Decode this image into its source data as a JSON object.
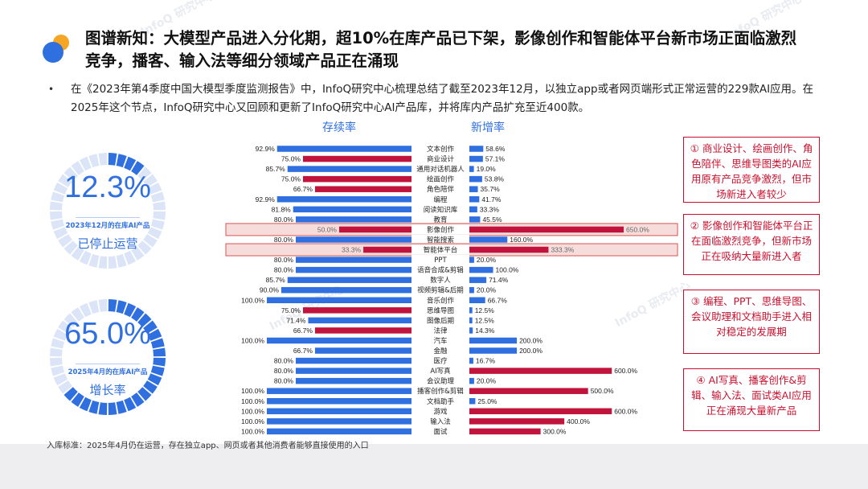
{
  "title": "图谱新知：大模型产品进入分化期，超10%在库产品已下架，影像创作和智能体平台新市场正面临激烈竞争，播客、输入法等细分领域产品正在涌现",
  "bullet": "•",
  "intro": "在《2023年第4季度中国大模型季度监测报告》中，InfoQ研究中心梳理总结了截至2023年12月，以独立app或者网页端形式正常运营的229款AI应用。在2025年这个节点，InfoQ研究中心又回顾和更新了InfoQ研究中心AI产品库，并将库内产品扩充至近400款。",
  "stat1": {
    "value": "12.3%",
    "sub": "2023年12月的在库AI产品",
    "label": "已停止运营",
    "fraction": 0.123
  },
  "stat2": {
    "value": "65.0%",
    "sub": "2025年4月的在库AI产品",
    "label": "增长率",
    "fraction": 0.65
  },
  "notes": [
    "① 商业设计、绘画创作、角色陪伴、思维导图类的AI应用原有产品竞争激烈，但市场新进入者较少",
    "② 影像创作和智能体平台正在面临激烈竞争，但新市场正在吸纳大量新进入者",
    "③ 编程、PPT、思维导图、会议助理和文档助手进入相对稳定的发展期",
    "④ AI写真、播客创作&剪辑、输入法、面试类AI应用正在涌现大量新产品"
  ],
  "footnote": "入库标准：2025年4月仍在运营，存在独立app、网页或者其他消费者能够直接使用的入口",
  "watermark": "InfoQ 研究中心",
  "colors": {
    "blue": "#2f6fe0",
    "red": "#c0143c",
    "highlight_fill": "#f7dcdc",
    "highlight_border": "#d9534f"
  },
  "chart_data": {
    "type": "bar",
    "layout": "diverging",
    "series": [
      {
        "name": "存续率",
        "side": "left",
        "values": [
          92.9,
          75.0,
          85.7,
          75.0,
          66.7,
          92.9,
          81.8,
          80.0,
          50.0,
          80.0,
          33.3,
          80.0,
          80.0,
          85.7,
          90.0,
          100.0,
          75.0,
          71.4,
          66.7,
          100.0,
          66.7,
          80.0,
          80.0,
          80.0,
          100.0,
          100.0,
          100.0,
          100.0,
          100.0
        ],
        "labels": [
          "92.9%",
          "75.0%",
          "85.7%",
          "75.0%",
          "66.7%",
          "92.9%",
          "81.8%",
          "80.0%",
          "50.0%",
          "80.0%",
          "33.3%",
          "80.0%",
          "80.0%",
          "85.7%",
          "90.0%",
          "100.0%",
          "75.0%",
          "71.4%",
          "66.7%",
          "100.0%",
          "66.7%",
          "80.0%",
          "80.0%",
          "80.0%",
          "100.0%",
          "100.0%",
          "100.0%",
          "100.0%",
          "100.0%"
        ]
      },
      {
        "name": "新增率",
        "side": "right",
        "values": [
          58.6,
          57.1,
          19.0,
          53.8,
          35.7,
          41.7,
          33.3,
          45.5,
          650.0,
          160.0,
          333.3,
          20.0,
          100.0,
          71.4,
          20.0,
          66.7,
          12.5,
          12.5,
          14.3,
          200.0,
          200.0,
          16.7,
          600.0,
          20.0,
          500.0,
          25.0,
          600.0,
          400.0,
          300.0
        ],
        "labels": [
          "58.6%",
          "57.1%",
          "19.0%",
          "53.8%",
          "35.7%",
          "41.7%",
          "33.3%",
          "45.5%",
          "650.0%",
          "160.0%",
          "333.3%",
          "20.0%",
          "100.0%",
          "71.4%",
          "20.0%",
          "66.7%",
          "12.5%",
          "12.5%",
          "14.3%",
          "200.0%",
          "200.0%",
          "16.7%",
          "600.0%",
          "20.0%",
          "500.0%",
          "25.0%",
          "600.0%",
          "400.0%",
          "300.0%"
        ]
      }
    ],
    "categories": [
      "文本创作",
      "商业设计",
      "通用对话机器人",
      "绘画创作",
      "角色陪伴",
      "编程",
      "阅读知识库",
      "教育",
      "影像创作",
      "智能搜索",
      "智能体平台",
      "PPT",
      "语音合成&剪辑",
      "数字人",
      "视频剪辑&后期",
      "音乐创作",
      "思维导图",
      "图像后期",
      "法律",
      "汽车",
      "金融",
      "医疗",
      "AI写真",
      "会议助理",
      "播客创作&剪辑",
      "文档助手",
      "游戏",
      "输入法",
      "面试"
    ],
    "left_color": [
      "blue",
      "red",
      "blue",
      "red",
      "red",
      "blue",
      "blue",
      "blue",
      "red",
      "blue",
      "red",
      "blue",
      "blue",
      "blue",
      "blue",
      "blue",
      "red",
      "blue",
      "red",
      "blue",
      "blue",
      "blue",
      "blue",
      "blue",
      "blue",
      "blue",
      "blue",
      "blue",
      "blue"
    ],
    "right_color": [
      "blue",
      "blue",
      "blue",
      "blue",
      "blue",
      "blue",
      "blue",
      "blue",
      "red",
      "blue",
      "red",
      "blue",
      "blue",
      "blue",
      "blue",
      "blue",
      "blue",
      "blue",
      "blue",
      "blue",
      "blue",
      "blue",
      "red",
      "blue",
      "red",
      "blue",
      "red",
      "red",
      "red"
    ],
    "highlighted": [
      "影像创作",
      "智能体平台"
    ],
    "left_range": [
      0,
      100
    ],
    "right_range": [
      0,
      650
    ]
  }
}
